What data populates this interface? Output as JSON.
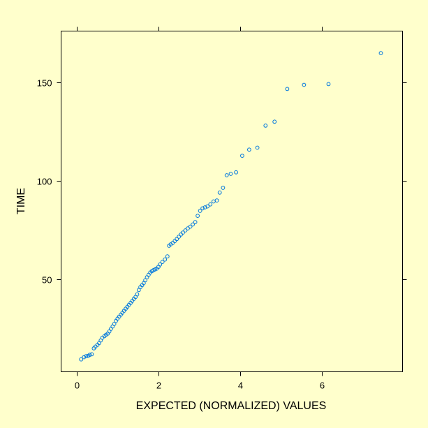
{
  "chart_data": {
    "type": "scatter",
    "title": "",
    "xlabel": "EXPECTED (NORMALIZED) VALUES",
    "ylabel": "TIME",
    "xlim": [
      -0.38,
      7.97
    ],
    "ylim": [
      3,
      176
    ],
    "xticks": [
      0,
      2,
      4,
      6
    ],
    "yticks": [
      50,
      100,
      150
    ],
    "grid": false,
    "legend": "none",
    "point_color": "#0077dd",
    "marker": "open-circle",
    "points": [
      [
        0.11,
        9.3
      ],
      [
        0.18,
        10.4
      ],
      [
        0.23,
        10.9
      ],
      [
        0.28,
        11.1
      ],
      [
        0.32,
        11.6
      ],
      [
        0.37,
        11.9
      ],
      [
        0.42,
        14.9
      ],
      [
        0.46,
        15.8
      ],
      [
        0.51,
        16.7
      ],
      [
        0.55,
        17.6
      ],
      [
        0.59,
        18.9
      ],
      [
        0.63,
        20.3
      ],
      [
        0.68,
        21.1
      ],
      [
        0.72,
        21.8
      ],
      [
        0.76,
        22.4
      ],
      [
        0.8,
        23.5
      ],
      [
        0.84,
        24.8
      ],
      [
        0.88,
        26.0
      ],
      [
        0.92,
        27.3
      ],
      [
        0.96,
        28.8
      ],
      [
        1.0,
        30.0
      ],
      [
        1.04,
        31.0
      ],
      [
        1.08,
        32.0
      ],
      [
        1.12,
        33.0
      ],
      [
        1.16,
        34.0
      ],
      [
        1.2,
        35.0
      ],
      [
        1.24,
        36.0
      ],
      [
        1.28,
        37.0
      ],
      [
        1.32,
        38.0
      ],
      [
        1.36,
        39.0
      ],
      [
        1.4,
        40.0
      ],
      [
        1.44,
        41.0
      ],
      [
        1.48,
        42.3
      ],
      [
        1.52,
        44.5
      ],
      [
        1.56,
        46.0
      ],
      [
        1.6,
        47.0
      ],
      [
        1.64,
        48.0
      ],
      [
        1.68,
        49.5
      ],
      [
        1.72,
        51.0
      ],
      [
        1.76,
        52.2
      ],
      [
        1.8,
        53.4
      ],
      [
        1.84,
        54.1
      ],
      [
        1.88,
        54.6
      ],
      [
        1.92,
        55.0
      ],
      [
        1.96,
        55.4
      ],
      [
        2.0,
        56.3
      ],
      [
        2.04,
        57.5
      ],
      [
        2.1,
        58.8
      ],
      [
        2.16,
        60.0
      ],
      [
        2.22,
        61.6
      ],
      [
        2.26,
        67.0
      ],
      [
        2.3,
        67.7
      ],
      [
        2.35,
        68.4
      ],
      [
        2.4,
        69.4
      ],
      [
        2.45,
        70.4
      ],
      [
        2.5,
        71.6
      ],
      [
        2.55,
        72.7
      ],
      [
        2.6,
        73.7
      ],
      [
        2.66,
        74.8
      ],
      [
        2.72,
        75.8
      ],
      [
        2.78,
        76.7
      ],
      [
        2.84,
        77.8
      ],
      [
        2.9,
        79.0
      ],
      [
        2.96,
        82.2
      ],
      [
        3.02,
        84.7
      ],
      [
        3.08,
        86.0
      ],
      [
        3.14,
        86.5
      ],
      [
        3.2,
        87.0
      ],
      [
        3.27,
        88.0
      ],
      [
        3.35,
        89.5
      ],
      [
        3.43,
        90.0
      ],
      [
        3.5,
        94.0
      ],
      [
        3.58,
        96.4
      ],
      [
        3.67,
        102.8
      ],
      [
        3.77,
        103.5
      ],
      [
        3.9,
        104.3
      ],
      [
        4.05,
        112.7
      ],
      [
        4.22,
        115.8
      ],
      [
        4.42,
        116.8
      ],
      [
        4.62,
        128.0
      ],
      [
        4.84,
        130.0
      ],
      [
        5.15,
        146.6
      ],
      [
        5.56,
        148.7
      ],
      [
        6.16,
        149.1
      ],
      [
        7.44,
        164.8
      ]
    ]
  }
}
